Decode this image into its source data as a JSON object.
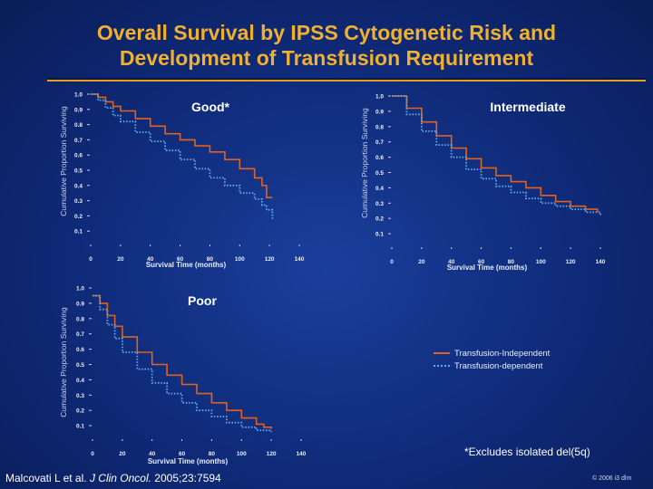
{
  "title": {
    "line1": "Overall Survival by IPSS Cytogenetic Risk and",
    "line2": "Development of Transfusion Requirement"
  },
  "legend": {
    "independent": "Transfusion-Independent",
    "dependent": "Transfusion-dependent"
  },
  "footnote": "*Excludes isolated del(5q)",
  "citation": {
    "pre": "Malcovati L et al. ",
    "journal": "J Clin Oncol.",
    "post": " 2005;23:7594"
  },
  "copyright": "© 2006 i3 dlm",
  "colors": {
    "independent": "#e0621e",
    "dependent": "#5fb0e8",
    "title": "#f0b030"
  },
  "chart_data": [
    {
      "type": "line",
      "title": "Good*",
      "ylabel": "Cumulative Proportion Surviving",
      "xlabel": "Survival Time (months)",
      "xlim": [
        0,
        140
      ],
      "ylim": [
        0,
        1
      ],
      "xticks": [
        0,
        20,
        40,
        60,
        80,
        100,
        120,
        140
      ],
      "yticks": [
        0.1,
        0.2,
        0.3,
        0.4,
        0.5,
        0.6,
        0.7,
        0.8,
        0.9,
        1.0
      ],
      "series": [
        {
          "name": "Transfusion-Independent",
          "x": [
            0,
            5,
            10,
            15,
            20,
            30,
            40,
            50,
            60,
            70,
            80,
            90,
            100,
            110,
            115,
            118,
            122
          ],
          "y": [
            1.0,
            0.98,
            0.95,
            0.92,
            0.89,
            0.84,
            0.79,
            0.74,
            0.7,
            0.66,
            0.62,
            0.57,
            0.51,
            0.45,
            0.4,
            0.32,
            0.32
          ]
        },
        {
          "name": "Transfusion-dependent",
          "x": [
            0,
            5,
            10,
            15,
            20,
            30,
            40,
            50,
            60,
            70,
            80,
            90,
            100,
            110,
            115,
            118,
            122
          ],
          "y": [
            1.0,
            0.96,
            0.91,
            0.86,
            0.82,
            0.75,
            0.69,
            0.63,
            0.57,
            0.51,
            0.45,
            0.4,
            0.35,
            0.31,
            0.27,
            0.24,
            0.18
          ]
        }
      ]
    },
    {
      "type": "line",
      "title": "Intermediate",
      "ylabel": "Cumulative Proportion Surviving",
      "xlabel": "Survival Time (months)",
      "xlim": [
        0,
        140
      ],
      "ylim": [
        0,
        1
      ],
      "xticks": [
        0,
        20,
        40,
        60,
        80,
        100,
        120,
        140
      ],
      "yticks": [
        0.1,
        0.2,
        0.3,
        0.4,
        0.5,
        0.6,
        0.7,
        0.8,
        0.9,
        1.0
      ],
      "series": [
        {
          "name": "Transfusion-Independent",
          "x": [
            0,
            10,
            20,
            30,
            40,
            50,
            60,
            70,
            80,
            90,
            100,
            110,
            120,
            130,
            138
          ],
          "y": [
            1.0,
            0.92,
            0.83,
            0.74,
            0.66,
            0.59,
            0.53,
            0.48,
            0.44,
            0.4,
            0.35,
            0.31,
            0.28,
            0.26,
            0.24
          ]
        },
        {
          "name": "Transfusion-dependent",
          "x": [
            0,
            10,
            20,
            30,
            40,
            50,
            60,
            70,
            80,
            90,
            100,
            110,
            120,
            130,
            140
          ],
          "y": [
            1.0,
            0.88,
            0.77,
            0.68,
            0.6,
            0.52,
            0.46,
            0.41,
            0.37,
            0.33,
            0.3,
            0.28,
            0.26,
            0.24,
            0.22
          ]
        }
      ]
    },
    {
      "type": "line",
      "title": "Poor",
      "ylabel": "Cumulative Proportion Surviving",
      "xlabel": "Survival Time (months)",
      "xlim": [
        0,
        140
      ],
      "ylim": [
        0,
        1
      ],
      "xticks": [
        0,
        20,
        40,
        60,
        80,
        100,
        120,
        140
      ],
      "yticks": [
        0.1,
        0.2,
        0.3,
        0.4,
        0.5,
        0.6,
        0.7,
        0.8,
        0.9,
        1.0
      ],
      "series": [
        {
          "name": "Transfusion-Independent",
          "x": [
            0,
            5,
            10,
            15,
            20,
            30,
            40,
            50,
            60,
            70,
            80,
            90,
            100,
            110,
            115,
            120
          ],
          "y": [
            0.95,
            0.9,
            0.82,
            0.75,
            0.68,
            0.58,
            0.5,
            0.43,
            0.37,
            0.31,
            0.25,
            0.2,
            0.15,
            0.11,
            0.09,
            0.08
          ]
        },
        {
          "name": "Transfusion-dependent",
          "x": [
            0,
            5,
            10,
            15,
            20,
            30,
            40,
            50,
            60,
            70,
            80,
            90,
            100,
            110,
            120
          ],
          "y": [
            0.95,
            0.86,
            0.76,
            0.67,
            0.58,
            0.47,
            0.38,
            0.31,
            0.25,
            0.2,
            0.16,
            0.12,
            0.09,
            0.07,
            0.06
          ]
        }
      ]
    }
  ]
}
